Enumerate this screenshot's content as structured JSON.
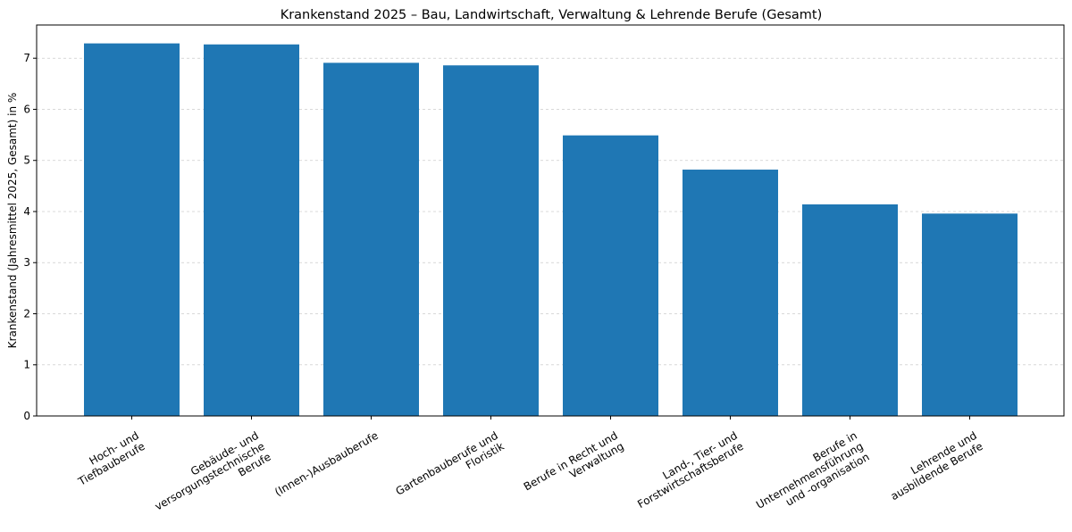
{
  "chart_data": {
    "type": "bar",
    "title": "Krankenstand 2025 – Bau, Landwirtschaft, Verwaltung & Lehrende Berufe (Gesamt)",
    "xlabel": "",
    "ylabel": "Krankenstand (Jahresmittel 2025, Gesamt) in %",
    "ylim": [
      0,
      7.65
    ],
    "yticks": [
      0,
      1,
      2,
      3,
      4,
      5,
      6,
      7
    ],
    "grid": "y-dashed",
    "bar_color": "#1f77b4",
    "categories": [
      [
        "Hoch- und",
        "Tiefbauberufe"
      ],
      [
        "Gebäude- und",
        "versorgungstechnische",
        "Berufe"
      ],
      [
        "(Innen-)Ausbauberufe"
      ],
      [
        "Gartenbauberufe und",
        "Floristik"
      ],
      [
        "Berufe in Recht und",
        "Verwaltung"
      ],
      [
        "Land-, Tier- und",
        "Forstwirtschaftsberufe"
      ],
      [
        "Berufe in",
        "Unternehmensführung",
        "und -organisation"
      ],
      [
        "Lehrende und",
        "ausbildende Berufe"
      ]
    ],
    "values": [
      7.29,
      7.27,
      6.91,
      6.86,
      5.49,
      4.82,
      4.14,
      3.96
    ]
  }
}
